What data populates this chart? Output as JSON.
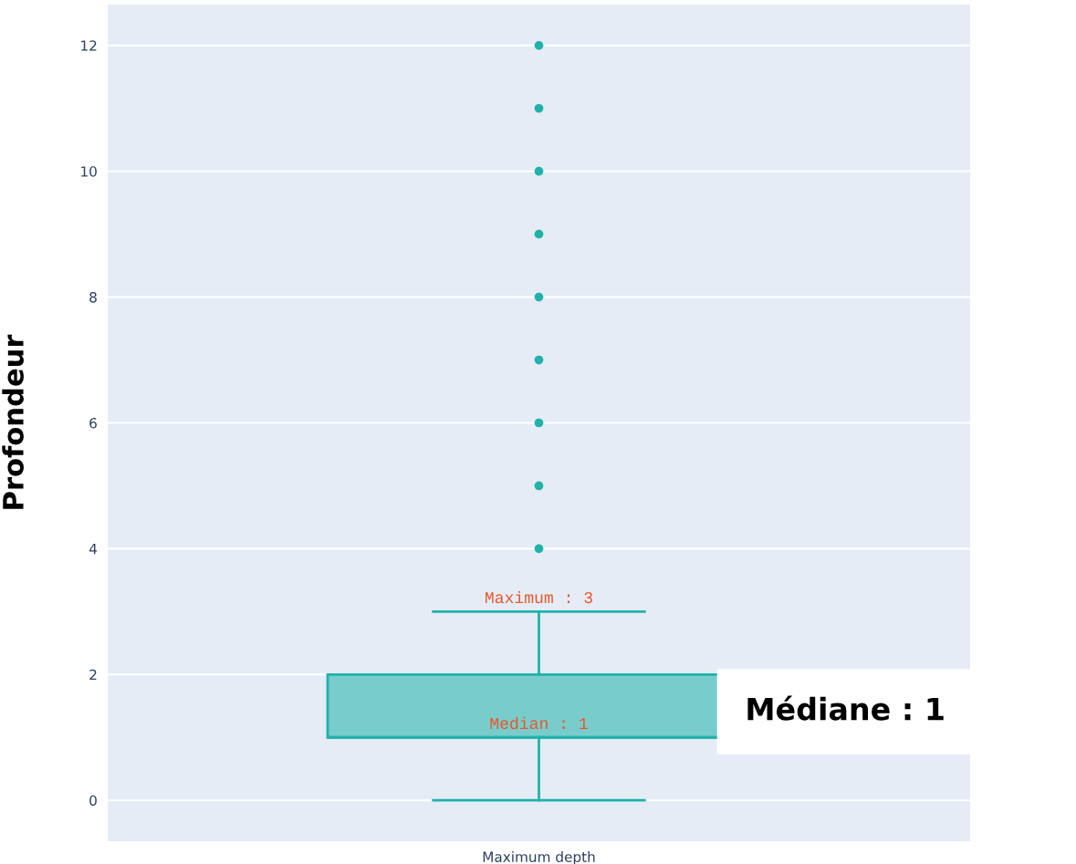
{
  "chart_data": {
    "type": "box",
    "ylabel": "Profondeur",
    "categories": [
      "Maximum depth"
    ],
    "boxes": [
      {
        "low": 0,
        "q1": 1,
        "median": 1,
        "q3": 2,
        "high": 3,
        "outliers": [
          4,
          5,
          6,
          7,
          8,
          9,
          10,
          11,
          12
        ]
      }
    ],
    "color": "#20b2aa",
    "ylim": [
      -0.65,
      12.65
    ],
    "yticks": [
      0,
      2,
      4,
      6,
      8,
      10,
      12
    ],
    "grid": "y",
    "annotations": [
      {
        "text": "Maximum : 3",
        "x": "Maximum depth",
        "y": 3
      },
      {
        "text": "Median : 1",
        "x": "Maximum depth",
        "y": 1
      },
      "Médiane : 1"
    ]
  }
}
